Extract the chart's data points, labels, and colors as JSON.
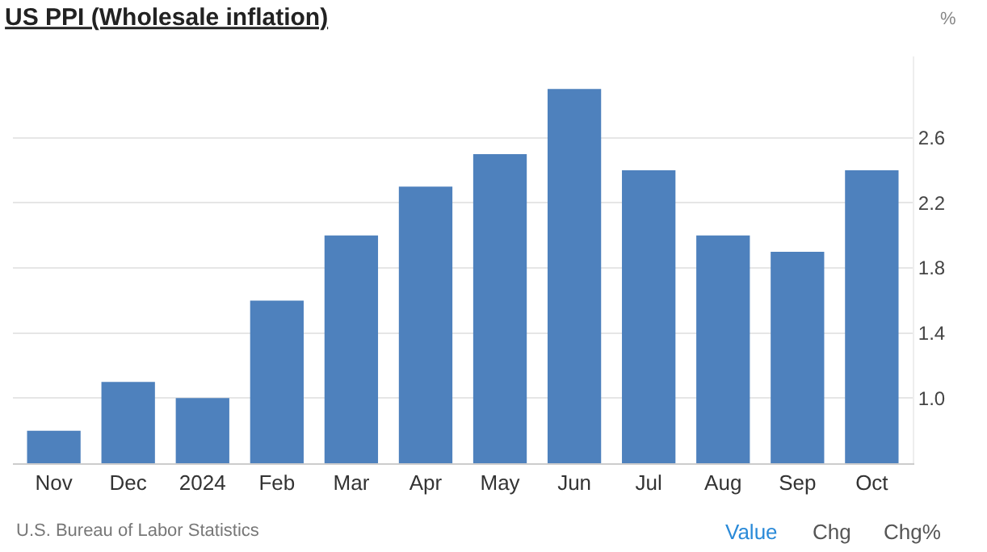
{
  "chart_data": {
    "type": "bar",
    "title": "US PPI (Wholesale inflation)",
    "ylabel": "%",
    "categories": [
      "Nov",
      "Dec",
      "2024",
      "Feb",
      "Mar",
      "Apr",
      "May",
      "Jun",
      "Jul",
      "Aug",
      "Sep",
      "Oct"
    ],
    "values": [
      0.8,
      1.1,
      1.0,
      1.6,
      2.0,
      2.3,
      2.5,
      2.9,
      2.4,
      2.0,
      1.9,
      2.4
    ],
    "color": "#4e81bd",
    "ylim": [
      0.6,
      3.1
    ],
    "yticks": [
      {
        "value": 1.0,
        "label": "1.0"
      },
      1.4,
      1.8,
      2.2,
      2.6
    ],
    "grid": "y",
    "legend": false,
    "annotations": [
      "U.S. Bureau of Labor Statistics",
      "Value",
      "Chg",
      "Chg%"
    ]
  }
}
